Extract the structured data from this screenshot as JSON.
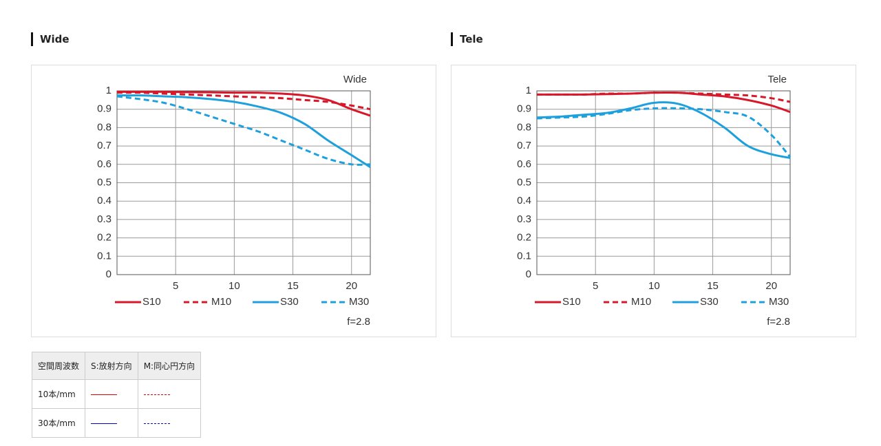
{
  "headings": [
    "Wide",
    "Tele"
  ],
  "chart_data": [
    {
      "type": "line",
      "title": "Wide",
      "annotation": "f=2.8",
      "x": [
        0,
        2,
        4,
        6,
        8,
        10,
        12,
        14,
        16,
        18,
        20,
        21.6
      ],
      "xlim": [
        0,
        21.6
      ],
      "xticks": [
        5,
        10,
        15,
        20
      ],
      "ylim": [
        0,
        1
      ],
      "yticks": [
        0,
        0.1,
        0.2,
        0.3,
        0.4,
        0.5,
        0.6,
        0.7,
        0.8,
        0.9,
        1
      ],
      "grid": true,
      "legend": "bottom",
      "series": [
        {
          "name": "S10",
          "color": "#d7182a",
          "dash": false,
          "values": [
            0.995,
            0.995,
            0.995,
            0.993,
            0.992,
            0.99,
            0.99,
            0.985,
            0.975,
            0.95,
            0.9,
            0.865
          ]
        },
        {
          "name": "M10",
          "color": "#d7182a",
          "dash": true,
          "values": [
            0.99,
            0.99,
            0.985,
            0.98,
            0.975,
            0.97,
            0.965,
            0.96,
            0.95,
            0.94,
            0.92,
            0.9
          ]
        },
        {
          "name": "S30",
          "color": "#1ea0dc",
          "dash": false,
          "values": [
            0.975,
            0.975,
            0.97,
            0.965,
            0.955,
            0.94,
            0.915,
            0.88,
            0.82,
            0.73,
            0.65,
            0.585
          ]
        },
        {
          "name": "M30",
          "color": "#1ea0dc",
          "dash": true,
          "values": [
            0.97,
            0.955,
            0.935,
            0.9,
            0.86,
            0.82,
            0.78,
            0.73,
            0.68,
            0.63,
            0.6,
            0.6
          ]
        }
      ]
    },
    {
      "type": "line",
      "title": "Tele",
      "annotation": "f=2.8",
      "x": [
        0,
        2,
        4,
        6,
        8,
        10,
        12,
        14,
        16,
        18,
        20,
        21.6
      ],
      "xlim": [
        0,
        21.6
      ],
      "xticks": [
        5,
        10,
        15,
        20
      ],
      "ylim": [
        0,
        1
      ],
      "yticks": [
        0,
        0.1,
        0.2,
        0.3,
        0.4,
        0.5,
        0.6,
        0.7,
        0.8,
        0.9,
        1
      ],
      "grid": true,
      "legend": "bottom",
      "series": [
        {
          "name": "S10",
          "color": "#d7182a",
          "dash": false,
          "values": [
            0.98,
            0.98,
            0.98,
            0.982,
            0.985,
            0.99,
            0.99,
            0.98,
            0.97,
            0.95,
            0.92,
            0.885
          ]
        },
        {
          "name": "M10",
          "color": "#d7182a",
          "dash": true,
          "values": [
            0.98,
            0.98,
            0.98,
            0.985,
            0.985,
            0.99,
            0.99,
            0.985,
            0.98,
            0.975,
            0.96,
            0.94
          ]
        },
        {
          "name": "S30",
          "color": "#1ea0dc",
          "dash": false,
          "values": [
            0.855,
            0.86,
            0.87,
            0.88,
            0.905,
            0.935,
            0.93,
            0.88,
            0.8,
            0.7,
            0.655,
            0.635
          ]
        },
        {
          "name": "M30",
          "color": "#1ea0dc",
          "dash": true,
          "values": [
            0.85,
            0.855,
            0.86,
            0.875,
            0.895,
            0.905,
            0.905,
            0.9,
            0.885,
            0.86,
            0.76,
            0.64
          ]
        }
      ]
    }
  ],
  "table": {
    "header": [
      "空間周波数",
      "S:放射方向",
      "M:同心円方向"
    ],
    "rows": [
      [
        "10本/mm"
      ],
      [
        "30本/mm"
      ]
    ]
  }
}
